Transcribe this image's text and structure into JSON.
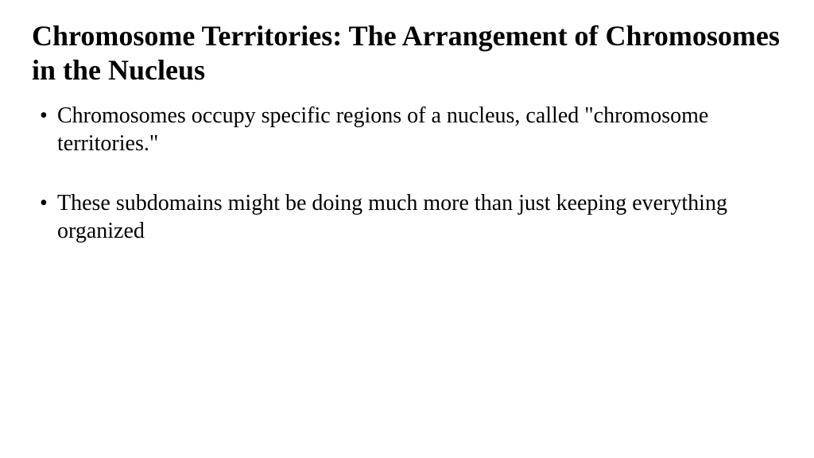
{
  "slide": {
    "title": "Chromosome Territories: The Arrangement of Chromosomes in the Nucleus",
    "bullets": [
      "Chromosomes occupy specific regions of a nucleus, called \"chromosome territories.\"",
      "These subdomains might be doing much more than just keeping everything organized"
    ],
    "title_fontsize": 36,
    "body_fontsize": 28,
    "text_color": "#000000",
    "background_color": "#ffffff",
    "font_family": "Times New Roman"
  }
}
